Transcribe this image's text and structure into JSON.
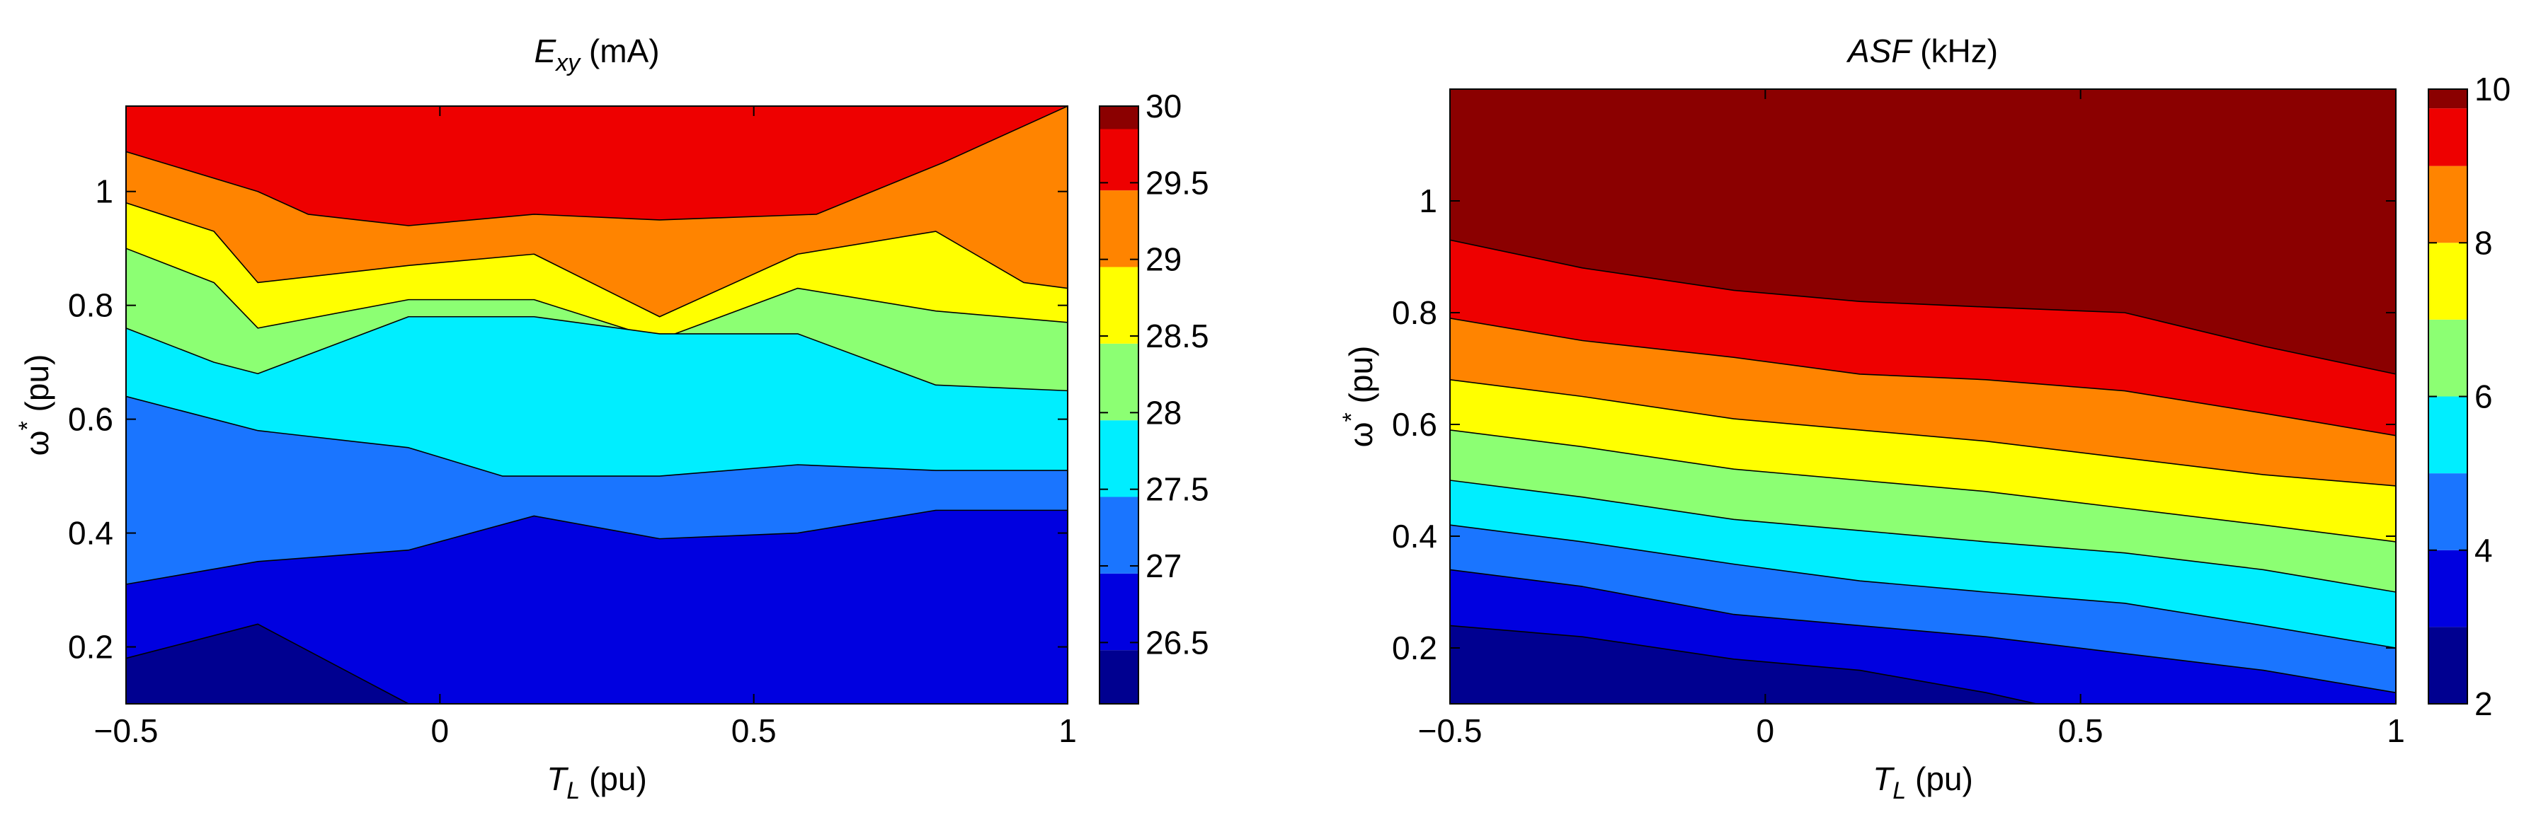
{
  "chart_data": [
    {
      "type": "contour",
      "title": {
        "symbol": "E",
        "subscript": "xy",
        "unit": " (mA)"
      },
      "xlabel": {
        "symbol": "T",
        "subscript": "L",
        "unit": " (pu)"
      },
      "ylabel": {
        "symbol": "ω",
        "superscript": "*",
        "unit": " (pu)"
      },
      "xlim": [
        -0.5,
        1.0
      ],
      "ylim": [
        0.1,
        1.15
      ],
      "xticks": [
        -0.5,
        0,
        0.5,
        1
      ],
      "xtick_labels": [
        "−0.5",
        "0",
        "0.5",
        "1"
      ],
      "yticks": [
        0.2,
        0.4,
        0.6,
        0.8,
        1.0
      ],
      "ytick_labels": [
        "0.2",
        "0.4",
        "0.6",
        "0.8",
        "1"
      ],
      "colorbar": {
        "min": 26.1,
        "max": 30.0,
        "ticks": [
          26.5,
          27,
          27.5,
          28,
          28.5,
          29,
          29.5,
          30
        ],
        "tick_labels": [
          "26.5",
          "27",
          "27.5",
          "28",
          "28.5",
          "29",
          "29.5",
          "30"
        ]
      },
      "levels": [
        {
          "value": 26.2,
          "color": "#000090"
        },
        {
          "value": 26.7,
          "color": "#0000e0"
        },
        {
          "value": 27.2,
          "color": "#1a75ff"
        },
        {
          "value": 27.7,
          "color": "#00eeff"
        },
        {
          "value": 28.2,
          "color": "#8cff73"
        },
        {
          "value": 28.7,
          "color": "#ffff00"
        },
        {
          "value": 29.2,
          "color": "#ff8400"
        },
        {
          "value": 29.7,
          "color": "#ee0000"
        },
        {
          "value": 30.0,
          "color": "#8b0000"
        }
      ],
      "boundaries": [
        [
          [
            -0.5,
            1.07
          ],
          [
            -0.29,
            1.0
          ],
          [
            -0.21,
            0.96
          ],
          [
            -0.05,
            0.94
          ],
          [
            0.15,
            0.96
          ],
          [
            0.35,
            0.95
          ],
          [
            0.6,
            0.96
          ],
          [
            0.8,
            1.05
          ],
          [
            1.0,
            1.15
          ]
        ],
        [
          [
            -0.5,
            0.98
          ],
          [
            -0.36,
            0.93
          ],
          [
            -0.29,
            0.84
          ],
          [
            -0.05,
            0.87
          ],
          [
            0.15,
            0.89
          ],
          [
            0.35,
            0.78
          ],
          [
            0.57,
            0.89
          ],
          [
            0.79,
            0.93
          ],
          [
            0.93,
            0.84
          ],
          [
            1.0,
            0.83
          ]
        ],
        [
          [
            -0.5,
            0.9
          ],
          [
            -0.36,
            0.84
          ],
          [
            -0.29,
            0.76
          ],
          [
            -0.05,
            0.81
          ],
          [
            0.15,
            0.81
          ],
          [
            0.35,
            0.74
          ],
          [
            0.57,
            0.83
          ],
          [
            0.79,
            0.79
          ],
          [
            1.0,
            0.77
          ]
        ],
        [
          [
            -0.5,
            0.76
          ],
          [
            -0.36,
            0.7
          ],
          [
            -0.29,
            0.68
          ],
          [
            -0.05,
            0.78
          ],
          [
            0.15,
            0.78
          ],
          [
            0.35,
            0.75
          ],
          [
            0.57,
            0.75
          ],
          [
            0.79,
            0.66
          ],
          [
            1.0,
            0.65
          ]
        ],
        [
          [
            -0.5,
            0.64
          ],
          [
            -0.29,
            0.58
          ],
          [
            -0.05,
            0.55
          ],
          [
            0.1,
            0.5
          ],
          [
            0.35,
            0.5
          ],
          [
            0.57,
            0.52
          ],
          [
            0.79,
            0.51
          ],
          [
            1.0,
            0.51
          ]
        ],
        [
          [
            -0.5,
            0.31
          ],
          [
            -0.29,
            0.35
          ],
          [
            -0.05,
            0.37
          ],
          [
            0.15,
            0.43
          ],
          [
            0.35,
            0.39
          ],
          [
            0.57,
            0.4
          ],
          [
            0.79,
            0.44
          ],
          [
            1.0,
            0.44
          ]
        ],
        [
          [
            -0.5,
            0.18
          ],
          [
            -0.29,
            0.24
          ],
          [
            -0.05,
            0.1
          ]
        ]
      ]
    },
    {
      "type": "contour",
      "title": {
        "symbol": "ASF",
        "unit": " (kHz)"
      },
      "xlabel": {
        "symbol": "T",
        "subscript": "L",
        "unit": " (pu)"
      },
      "ylabel": {
        "symbol": "ω",
        "superscript": "*",
        "unit": " (pu)"
      },
      "xlim": [
        -0.5,
        1.0
      ],
      "ylim": [
        0.1,
        1.2
      ],
      "xticks": [
        -0.5,
        0,
        0.5,
        1
      ],
      "xtick_labels": [
        "−0.5",
        "0",
        "0.5",
        "1"
      ],
      "yticks": [
        0.2,
        0.4,
        0.6,
        0.8,
        1.0
      ],
      "ytick_labels": [
        "0.2",
        "0.4",
        "0.6",
        "0.8",
        "1"
      ],
      "colorbar": {
        "min": 2,
        "max": 10,
        "ticks": [
          2,
          4,
          6,
          8,
          10
        ],
        "tick_labels": [
          "2",
          "4",
          "6",
          "8",
          "10"
        ]
      },
      "levels": [
        {
          "value": 2.5,
          "color": "#000090"
        },
        {
          "value": 3.5,
          "color": "#0000e0"
        },
        {
          "value": 4.5,
          "color": "#1a75ff"
        },
        {
          "value": 5.5,
          "color": "#00eeff"
        },
        {
          "value": 6.5,
          "color": "#8cff73"
        },
        {
          "value": 7.5,
          "color": "#ffff00"
        },
        {
          "value": 8.5,
          "color": "#ff8400"
        },
        {
          "value": 9.5,
          "color": "#ee0000"
        },
        {
          "value": 10.0,
          "color": "#8b0000"
        }
      ],
      "boundaries": [
        [
          [
            -0.5,
            0.93
          ],
          [
            -0.29,
            0.88
          ],
          [
            -0.05,
            0.84
          ],
          [
            0.15,
            0.82
          ],
          [
            0.35,
            0.81
          ],
          [
            0.57,
            0.8
          ],
          [
            0.79,
            0.74
          ],
          [
            1.0,
            0.69
          ]
        ],
        [
          [
            -0.5,
            0.79
          ],
          [
            -0.29,
            0.75
          ],
          [
            -0.05,
            0.72
          ],
          [
            0.15,
            0.69
          ],
          [
            0.35,
            0.68
          ],
          [
            0.57,
            0.66
          ],
          [
            0.79,
            0.62
          ],
          [
            1.0,
            0.58
          ]
        ],
        [
          [
            -0.5,
            0.68
          ],
          [
            -0.29,
            0.65
          ],
          [
            -0.05,
            0.61
          ],
          [
            0.15,
            0.59
          ],
          [
            0.35,
            0.57
          ],
          [
            0.57,
            0.54
          ],
          [
            0.79,
            0.51
          ],
          [
            1.0,
            0.49
          ]
        ],
        [
          [
            -0.5,
            0.59
          ],
          [
            -0.29,
            0.56
          ],
          [
            -0.05,
            0.52
          ],
          [
            0.15,
            0.5
          ],
          [
            0.35,
            0.48
          ],
          [
            0.57,
            0.45
          ],
          [
            0.79,
            0.42
          ],
          [
            1.0,
            0.39
          ]
        ],
        [
          [
            -0.5,
            0.5
          ],
          [
            -0.29,
            0.47
          ],
          [
            -0.05,
            0.43
          ],
          [
            0.15,
            0.41
          ],
          [
            0.35,
            0.39
          ],
          [
            0.57,
            0.37
          ],
          [
            0.79,
            0.34
          ],
          [
            1.0,
            0.3
          ]
        ],
        [
          [
            -0.5,
            0.42
          ],
          [
            -0.29,
            0.39
          ],
          [
            -0.05,
            0.35
          ],
          [
            0.15,
            0.32
          ],
          [
            0.35,
            0.3
          ],
          [
            0.57,
            0.28
          ],
          [
            0.79,
            0.24
          ],
          [
            1.0,
            0.2
          ]
        ],
        [
          [
            -0.5,
            0.34
          ],
          [
            -0.29,
            0.31
          ],
          [
            -0.05,
            0.26
          ],
          [
            0.15,
            0.24
          ],
          [
            0.35,
            0.22
          ],
          [
            0.57,
            0.19
          ],
          [
            0.79,
            0.16
          ],
          [
            1.0,
            0.12
          ]
        ],
        [
          [
            -0.5,
            0.24
          ],
          [
            -0.29,
            0.22
          ],
          [
            -0.05,
            0.18
          ],
          [
            0.15,
            0.16
          ],
          [
            0.35,
            0.12
          ],
          [
            0.43,
            0.1
          ]
        ]
      ]
    }
  ]
}
